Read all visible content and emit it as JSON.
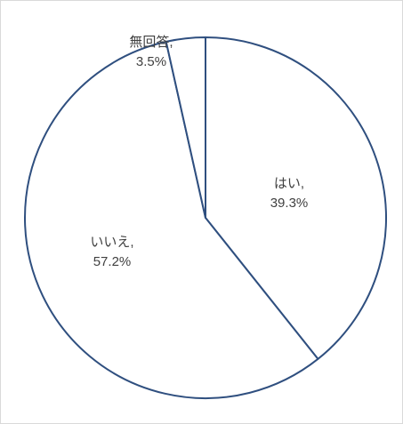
{
  "chart_data": {
    "type": "pie",
    "title": "",
    "start_angle_deg": 0,
    "direction": "clockwise",
    "slice_fill": "#ffffff",
    "slice_stroke": "#2f4f7f",
    "slices": [
      {
        "label": "はい,",
        "value": 39.3,
        "value_label": "39.3%"
      },
      {
        "label": "いいえ,",
        "value": 57.2,
        "value_label": "57.2%"
      },
      {
        "label": "無回答,",
        "value": 3.5,
        "value_label": "3.5%"
      }
    ]
  }
}
